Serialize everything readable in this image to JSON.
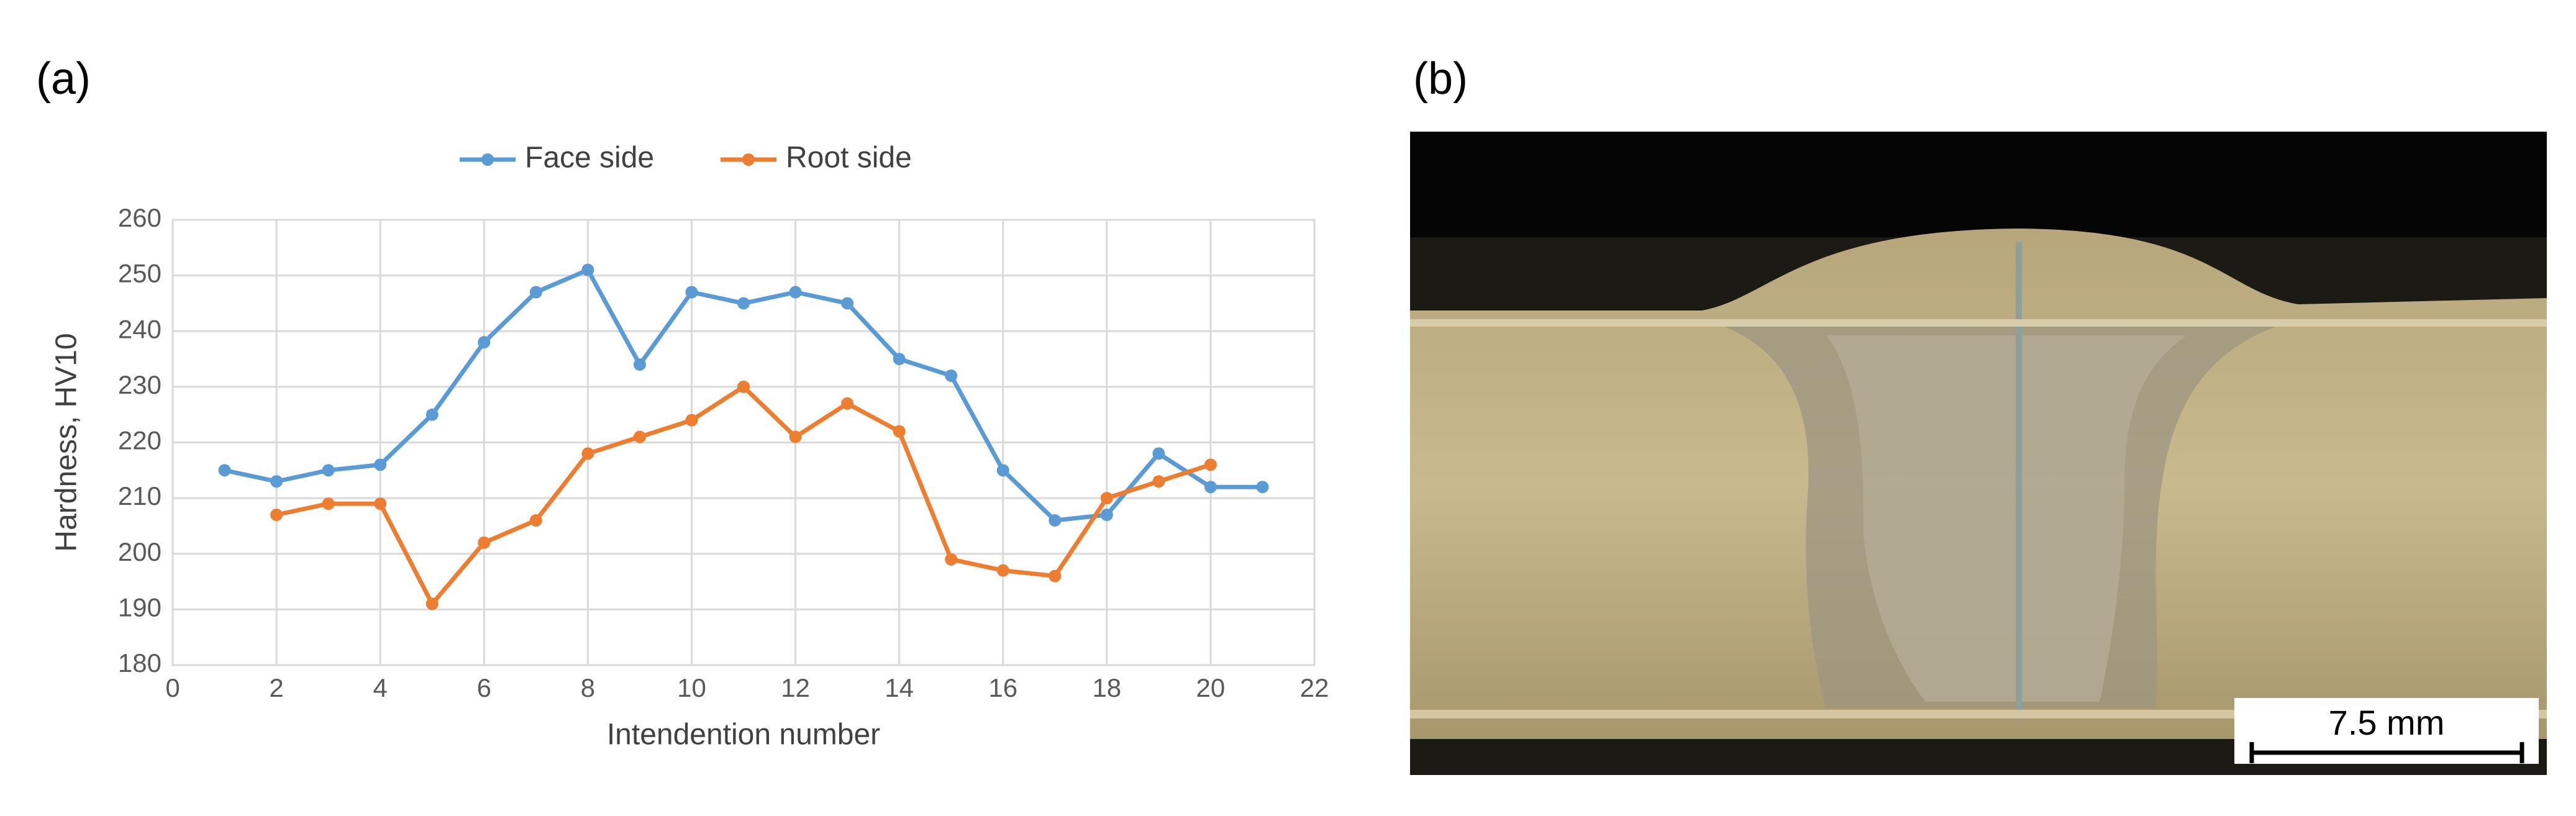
{
  "panels": {
    "a": "(a)",
    "b": "(b)"
  },
  "chart_data": {
    "type": "line",
    "xlabel": "Intendention number",
    "ylabel": "Hardness, HV10",
    "x": [
      1,
      2,
      3,
      4,
      5,
      6,
      7,
      8,
      9,
      10,
      11,
      12,
      13,
      14,
      15,
      16,
      17,
      18,
      19,
      20,
      21
    ],
    "series": [
      {
        "name": "Face side",
        "color": "#5b9bd5",
        "values": [
          215,
          213,
          215,
          216,
          225,
          238,
          247,
          251,
          234,
          247,
          245,
          247,
          245,
          235,
          232,
          215,
          206,
          207,
          218,
          212,
          212
        ]
      },
      {
        "name": "Root side",
        "color": "#ed7d31",
        "values": [
          null,
          207,
          209,
          209,
          191,
          202,
          206,
          218,
          221,
          224,
          230,
          221,
          227,
          222,
          199,
          197,
          196,
          210,
          213,
          216,
          null
        ]
      }
    ],
    "xlim": [
      0,
      22
    ],
    "xticks": [
      0,
      2,
      4,
      6,
      8,
      10,
      12,
      14,
      16,
      18,
      20,
      22
    ],
    "ylim": [
      180,
      260
    ],
    "yticks": [
      180,
      190,
      200,
      210,
      220,
      230,
      240,
      250,
      260
    ],
    "grid": true,
    "legend": "top"
  },
  "micrograph": {
    "scale_bar": "7.5 mm"
  }
}
